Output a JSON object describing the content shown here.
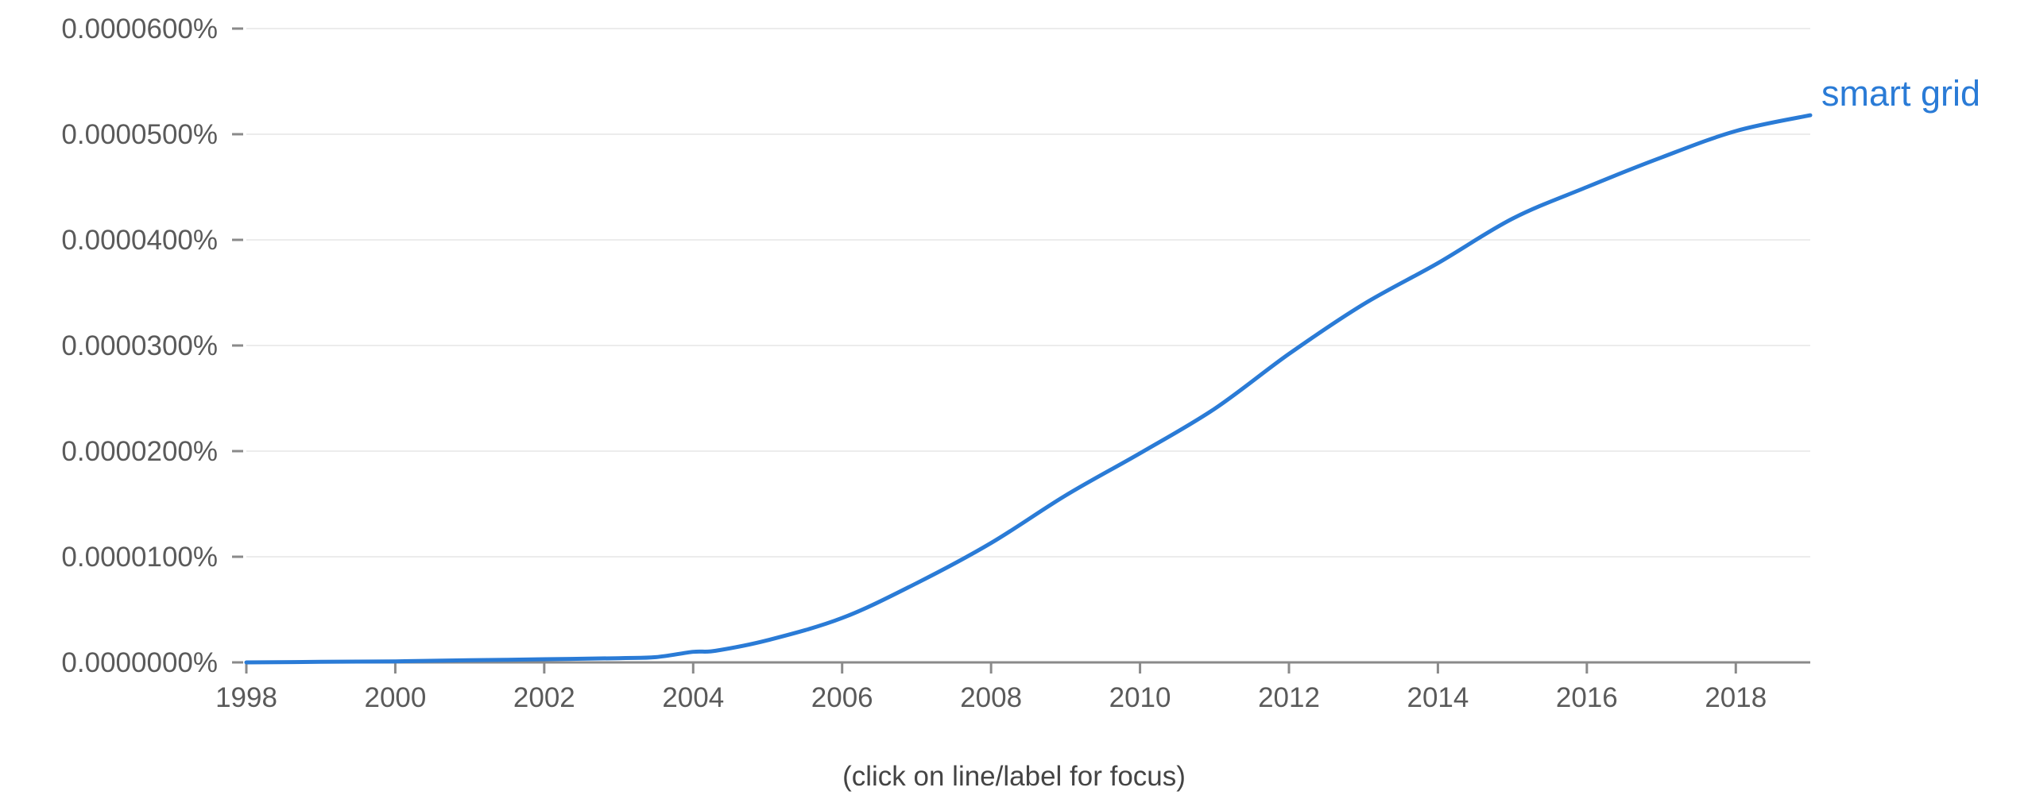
{
  "chart_data": {
    "type": "line",
    "xlabel": "",
    "ylabel": "",
    "xlim": [
      1998,
      2019
    ],
    "ylim": [
      0,
      6e-05
    ],
    "y_ticks": [
      {
        "value": 0.0,
        "label": "0.0000000%"
      },
      {
        "value": 1e-05,
        "label": "0.0000100%"
      },
      {
        "value": 2e-05,
        "label": "0.0000200%"
      },
      {
        "value": 3e-05,
        "label": "0.0000300%"
      },
      {
        "value": 4e-05,
        "label": "0.0000400%"
      },
      {
        "value": 5e-05,
        "label": "0.0000500%"
      },
      {
        "value": 6e-05,
        "label": "0.0000600%"
      }
    ],
    "x_ticks": [
      {
        "value": 1998,
        "label": "1998"
      },
      {
        "value": 2000,
        "label": "2000"
      },
      {
        "value": 2002,
        "label": "2002"
      },
      {
        "value": 2004,
        "label": "2004"
      },
      {
        "value": 2006,
        "label": "2006"
      },
      {
        "value": 2008,
        "label": "2008"
      },
      {
        "value": 2010,
        "label": "2010"
      },
      {
        "value": 2012,
        "label": "2012"
      },
      {
        "value": 2014,
        "label": "2014"
      },
      {
        "value": 2016,
        "label": "2016"
      },
      {
        "value": 2018,
        "label": "2018"
      }
    ],
    "grid": true,
    "series": [
      {
        "name": "smart grid",
        "color": "#2a7bd6",
        "x": [
          1998,
          1999,
          2000,
          2001,
          2002,
          2003,
          2003.5,
          2004,
          2004.3,
          2005,
          2006,
          2007,
          2008,
          2009,
          2010,
          2011,
          2012,
          2013,
          2014,
          2015,
          2016,
          2017,
          2018,
          2019
        ],
        "y": [
          0.0,
          5e-08,
          1e-07,
          2e-07,
          3e-07,
          4e-07,
          5e-07,
          1e-06,
          1.1e-06,
          2.1e-06,
          4.2e-06,
          7.5e-06,
          1.13e-05,
          1.58e-05,
          1.98e-05,
          2.4e-05,
          2.92e-05,
          3.39e-05,
          3.78e-05,
          4.2e-05,
          4.5e-05,
          4.78e-05,
          5.03e-05,
          5.18e-05
        ]
      }
    ]
  },
  "hint_text": "(click on line/label for focus)"
}
